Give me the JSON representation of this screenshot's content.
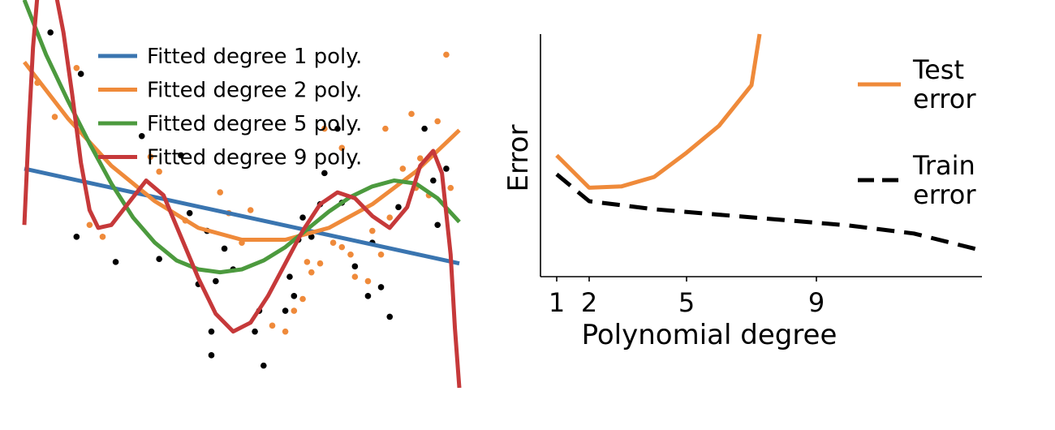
{
  "colors": {
    "blue": "#3a75b0",
    "orange": "#ef8a3a",
    "green": "#4c9a3e",
    "red": "#c6393a",
    "black": "#000000"
  },
  "chart_data": [
    {
      "type": "scatter",
      "title": "",
      "xlim": [
        0,
        1
      ],
      "ylim": [
        -1.2,
        1.2
      ],
      "legend": {
        "placement": "top-center",
        "entries": [
          {
            "label": "Fitted degree 1 poly.",
            "color_key": "blue"
          },
          {
            "label": "Fitted degree 2 poly.",
            "color_key": "orange"
          },
          {
            "label": "Fitted degree 5 poly.",
            "color_key": "green"
          },
          {
            "label": "Fitted degree 9 poly.",
            "color_key": "red"
          }
        ]
      },
      "points_black": [
        [
          0.06,
          1.2
        ],
        [
          0.13,
          0.92
        ],
        [
          0.27,
          0.5
        ],
        [
          0.36,
          0.37
        ],
        [
          0.12,
          -0.18
        ],
        [
          0.21,
          -0.35
        ],
        [
          0.31,
          -0.33
        ],
        [
          0.38,
          -0.02
        ],
        [
          0.42,
          -0.14
        ],
        [
          0.46,
          -0.26
        ],
        [
          0.48,
          -0.4
        ],
        [
          0.4,
          -0.5
        ],
        [
          0.44,
          -0.48
        ],
        [
          0.43,
          -0.82
        ],
        [
          0.43,
          -0.98
        ],
        [
          0.53,
          -0.82
        ],
        [
          0.55,
          -1.05
        ],
        [
          0.54,
          -0.68
        ],
        [
          0.6,
          -0.68
        ],
        [
          0.62,
          -0.58
        ],
        [
          0.61,
          -0.45
        ],
        [
          0.63,
          -0.2
        ],
        [
          0.64,
          -0.05
        ],
        [
          0.66,
          -0.18
        ],
        [
          0.68,
          0.04
        ],
        [
          0.69,
          0.25
        ],
        [
          0.72,
          0.55
        ],
        [
          0.73,
          0.05
        ],
        [
          0.76,
          -0.38
        ],
        [
          0.79,
          -0.58
        ],
        [
          0.8,
          -0.22
        ],
        [
          0.82,
          -0.52
        ],
        [
          0.84,
          -0.72
        ],
        [
          0.86,
          0.02
        ],
        [
          0.92,
          0.55
        ],
        [
          0.95,
          -0.1
        ],
        [
          0.97,
          0.28
        ],
        [
          0.94,
          0.2
        ]
      ],
      "points_orange": [
        [
          0.03,
          0.86
        ],
        [
          0.07,
          0.63
        ],
        [
          0.12,
          0.96
        ],
        [
          0.15,
          -0.1
        ],
        [
          0.18,
          -0.18
        ],
        [
          0.29,
          0.36
        ],
        [
          0.31,
          0.26
        ],
        [
          0.37,
          -0.07
        ],
        [
          0.45,
          0.12
        ],
        [
          0.47,
          -0.02
        ],
        [
          0.5,
          -0.22
        ],
        [
          0.52,
          0.0
        ],
        [
          0.57,
          -0.78
        ],
        [
          0.6,
          -0.82
        ],
        [
          0.62,
          -0.68
        ],
        [
          0.64,
          -0.6
        ],
        [
          0.66,
          -0.42
        ],
        [
          0.65,
          -0.35
        ],
        [
          0.68,
          -0.36
        ],
        [
          0.71,
          -0.22
        ],
        [
          0.73,
          -0.25
        ],
        [
          0.75,
          -0.3
        ],
        [
          0.76,
          -0.45
        ],
        [
          0.79,
          -0.48
        ],
        [
          0.8,
          -0.14
        ],
        [
          0.82,
          -0.3
        ],
        [
          0.84,
          -0.05
        ],
        [
          0.87,
          0.28
        ],
        [
          0.9,
          0.15
        ],
        [
          0.93,
          0.1
        ],
        [
          0.95,
          0.6
        ],
        [
          0.98,
          0.15
        ],
        [
          0.69,
          0.55
        ],
        [
          0.73,
          0.42
        ],
        [
          0.83,
          0.55
        ],
        [
          0.89,
          0.65
        ],
        [
          0.91,
          0.35
        ],
        [
          0.97,
          1.05
        ]
      ],
      "fits": [
        {
          "degree": 1,
          "color_key": "blue",
          "x": [
            0,
            1
          ],
          "y": [
            0.28,
            -0.36
          ]
        },
        {
          "degree": 2,
          "color_key": "orange",
          "x": [
            0,
            0.1,
            0.2,
            0.3,
            0.4,
            0.5,
            0.6,
            0.7,
            0.8,
            0.9,
            1.0
          ],
          "y": [
            1.0,
            0.62,
            0.3,
            0.06,
            -0.12,
            -0.2,
            -0.2,
            -0.12,
            0.04,
            0.26,
            0.54
          ]
        },
        {
          "degree": 5,
          "color_key": "green",
          "x": [
            0,
            0.05,
            0.1,
            0.15,
            0.2,
            0.25,
            0.3,
            0.35,
            0.4,
            0.45,
            0.5,
            0.55,
            0.6,
            0.65,
            0.7,
            0.75,
            0.8,
            0.85,
            0.9,
            0.95,
            1.0
          ],
          "y": [
            1.42,
            1.05,
            0.74,
            0.45,
            0.18,
            -0.05,
            -0.22,
            -0.34,
            -0.4,
            -0.42,
            -0.4,
            -0.34,
            -0.25,
            -0.13,
            -0.01,
            0.09,
            0.16,
            0.2,
            0.18,
            0.08,
            -0.08
          ]
        },
        {
          "degree": 9,
          "color_key": "red",
          "x": [
            0,
            0.01,
            0.02,
            0.03,
            0.04,
            0.05,
            0.07,
            0.09,
            0.11,
            0.13,
            0.15,
            0.17,
            0.2,
            0.24,
            0.28,
            0.32,
            0.36,
            0.4,
            0.44,
            0.48,
            0.52,
            0.56,
            0.6,
            0.64,
            0.68,
            0.72,
            0.76,
            0.8,
            0.84,
            0.88,
            0.91,
            0.94,
            0.96,
            0.98,
            0.99,
            1.0
          ],
          "y": [
            -0.1,
            0.55,
            1.1,
            1.45,
            1.6,
            1.62,
            1.5,
            1.2,
            0.78,
            0.32,
            0.0,
            -0.12,
            -0.1,
            0.05,
            0.2,
            0.1,
            -0.18,
            -0.46,
            -0.7,
            -0.82,
            -0.76,
            -0.58,
            -0.36,
            -0.14,
            0.04,
            0.12,
            0.08,
            -0.04,
            -0.12,
            0.02,
            0.3,
            0.4,
            0.25,
            -0.3,
            -0.8,
            -1.2
          ]
        }
      ]
    },
    {
      "type": "line",
      "title": "",
      "xlabel": "Polynomial degree",
      "ylabel": "Error",
      "xlim": [
        0.5,
        14.1
      ],
      "ylim": [
        0,
        9
      ],
      "xticks": [
        "1",
        "2",
        "5",
        "9"
      ],
      "xtick_values": [
        1,
        2,
        5,
        9
      ],
      "grid": false,
      "legend_placement": "right",
      "series": [
        {
          "name_lines": [
            "Test",
            "error"
          ],
          "color_key": "orange",
          "style": "solid",
          "x": [
            1,
            2,
            3,
            4,
            5,
            6,
            7,
            7.25
          ],
          "y": [
            4.5,
            3.3,
            3.35,
            3.7,
            4.6,
            5.6,
            7.1,
            9.0
          ]
        },
        {
          "name_lines": [
            "Train",
            "error"
          ],
          "color_key": "black",
          "style": "dashed",
          "x": [
            1,
            2,
            4,
            6,
            8,
            10,
            12,
            14
          ],
          "y": [
            3.8,
            2.8,
            2.5,
            2.3,
            2.1,
            1.9,
            1.6,
            1.0
          ]
        }
      ]
    }
  ]
}
